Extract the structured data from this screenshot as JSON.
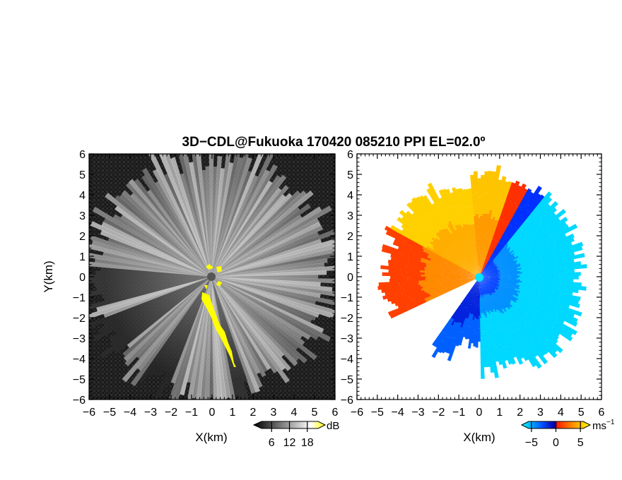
{
  "figure": {
    "title": "3D−CDL@Fukuoka 170420 085210 PPI EL=02.0º"
  },
  "chart_data": [
    {
      "type": "heatmap",
      "panel": "left",
      "quantity": "reflectivity",
      "xlabel": "X(km)",
      "ylabel": "Y(km)",
      "xlim": [
        -6,
        6
      ],
      "ylim": [
        -6,
        6
      ],
      "x_ticks": [
        "−6",
        "−5",
        "−4",
        "−3",
        "−2",
        "−1",
        "0",
        "1",
        "2",
        "3",
        "4",
        "5",
        "6"
      ],
      "y_ticks": [
        "−6",
        "−5",
        "−4",
        "−3",
        "−2",
        "−1",
        "0",
        "1",
        "2",
        "3",
        "4",
        "5",
        "6"
      ],
      "colorbar": {
        "unit": "dB",
        "ticks": [
          "6",
          "12",
          "18"
        ],
        "tick_values": [
          6,
          12,
          18
        ],
        "range": [
          0,
          24
        ],
        "colors": [
          "#000000",
          "#ffffff",
          "#ffff00"
        ]
      },
      "radar_site": [
        0,
        0
      ],
      "clutter_color": "#ffff00",
      "background_color": "#1e1e1e"
    },
    {
      "type": "heatmap",
      "panel": "right",
      "quantity": "doppler velocity",
      "xlabel": "X(km)",
      "ylabel": "",
      "xlim": [
        -6,
        6
      ],
      "ylim": [
        -6,
        6
      ],
      "x_ticks": [
        "−6",
        "−5",
        "−4",
        "−3",
        "−2",
        "−1",
        "0",
        "1",
        "2",
        "3",
        "4",
        "5",
        "6"
      ],
      "y_ticks": [
        "−6",
        "−5",
        "−4",
        "−3",
        "−2",
        "−1",
        "0",
        "1",
        "2",
        "3",
        "4",
        "5",
        "6"
      ],
      "colorbar": {
        "unit": "ms",
        "unit_exponent": "−1",
        "ticks": [
          "−5",
          "0",
          "5"
        ],
        "tick_values": [
          -5,
          0,
          5
        ],
        "range": [
          -7,
          7
        ],
        "colors": [
          "#00ffff",
          "#0050ff",
          "#0000aa",
          "#ff2000",
          "#ff9000",
          "#ffff00"
        ]
      },
      "radar_site": [
        0,
        0
      ],
      "site_color": "#00e5ff",
      "background_color": "#ffffff"
    }
  ]
}
